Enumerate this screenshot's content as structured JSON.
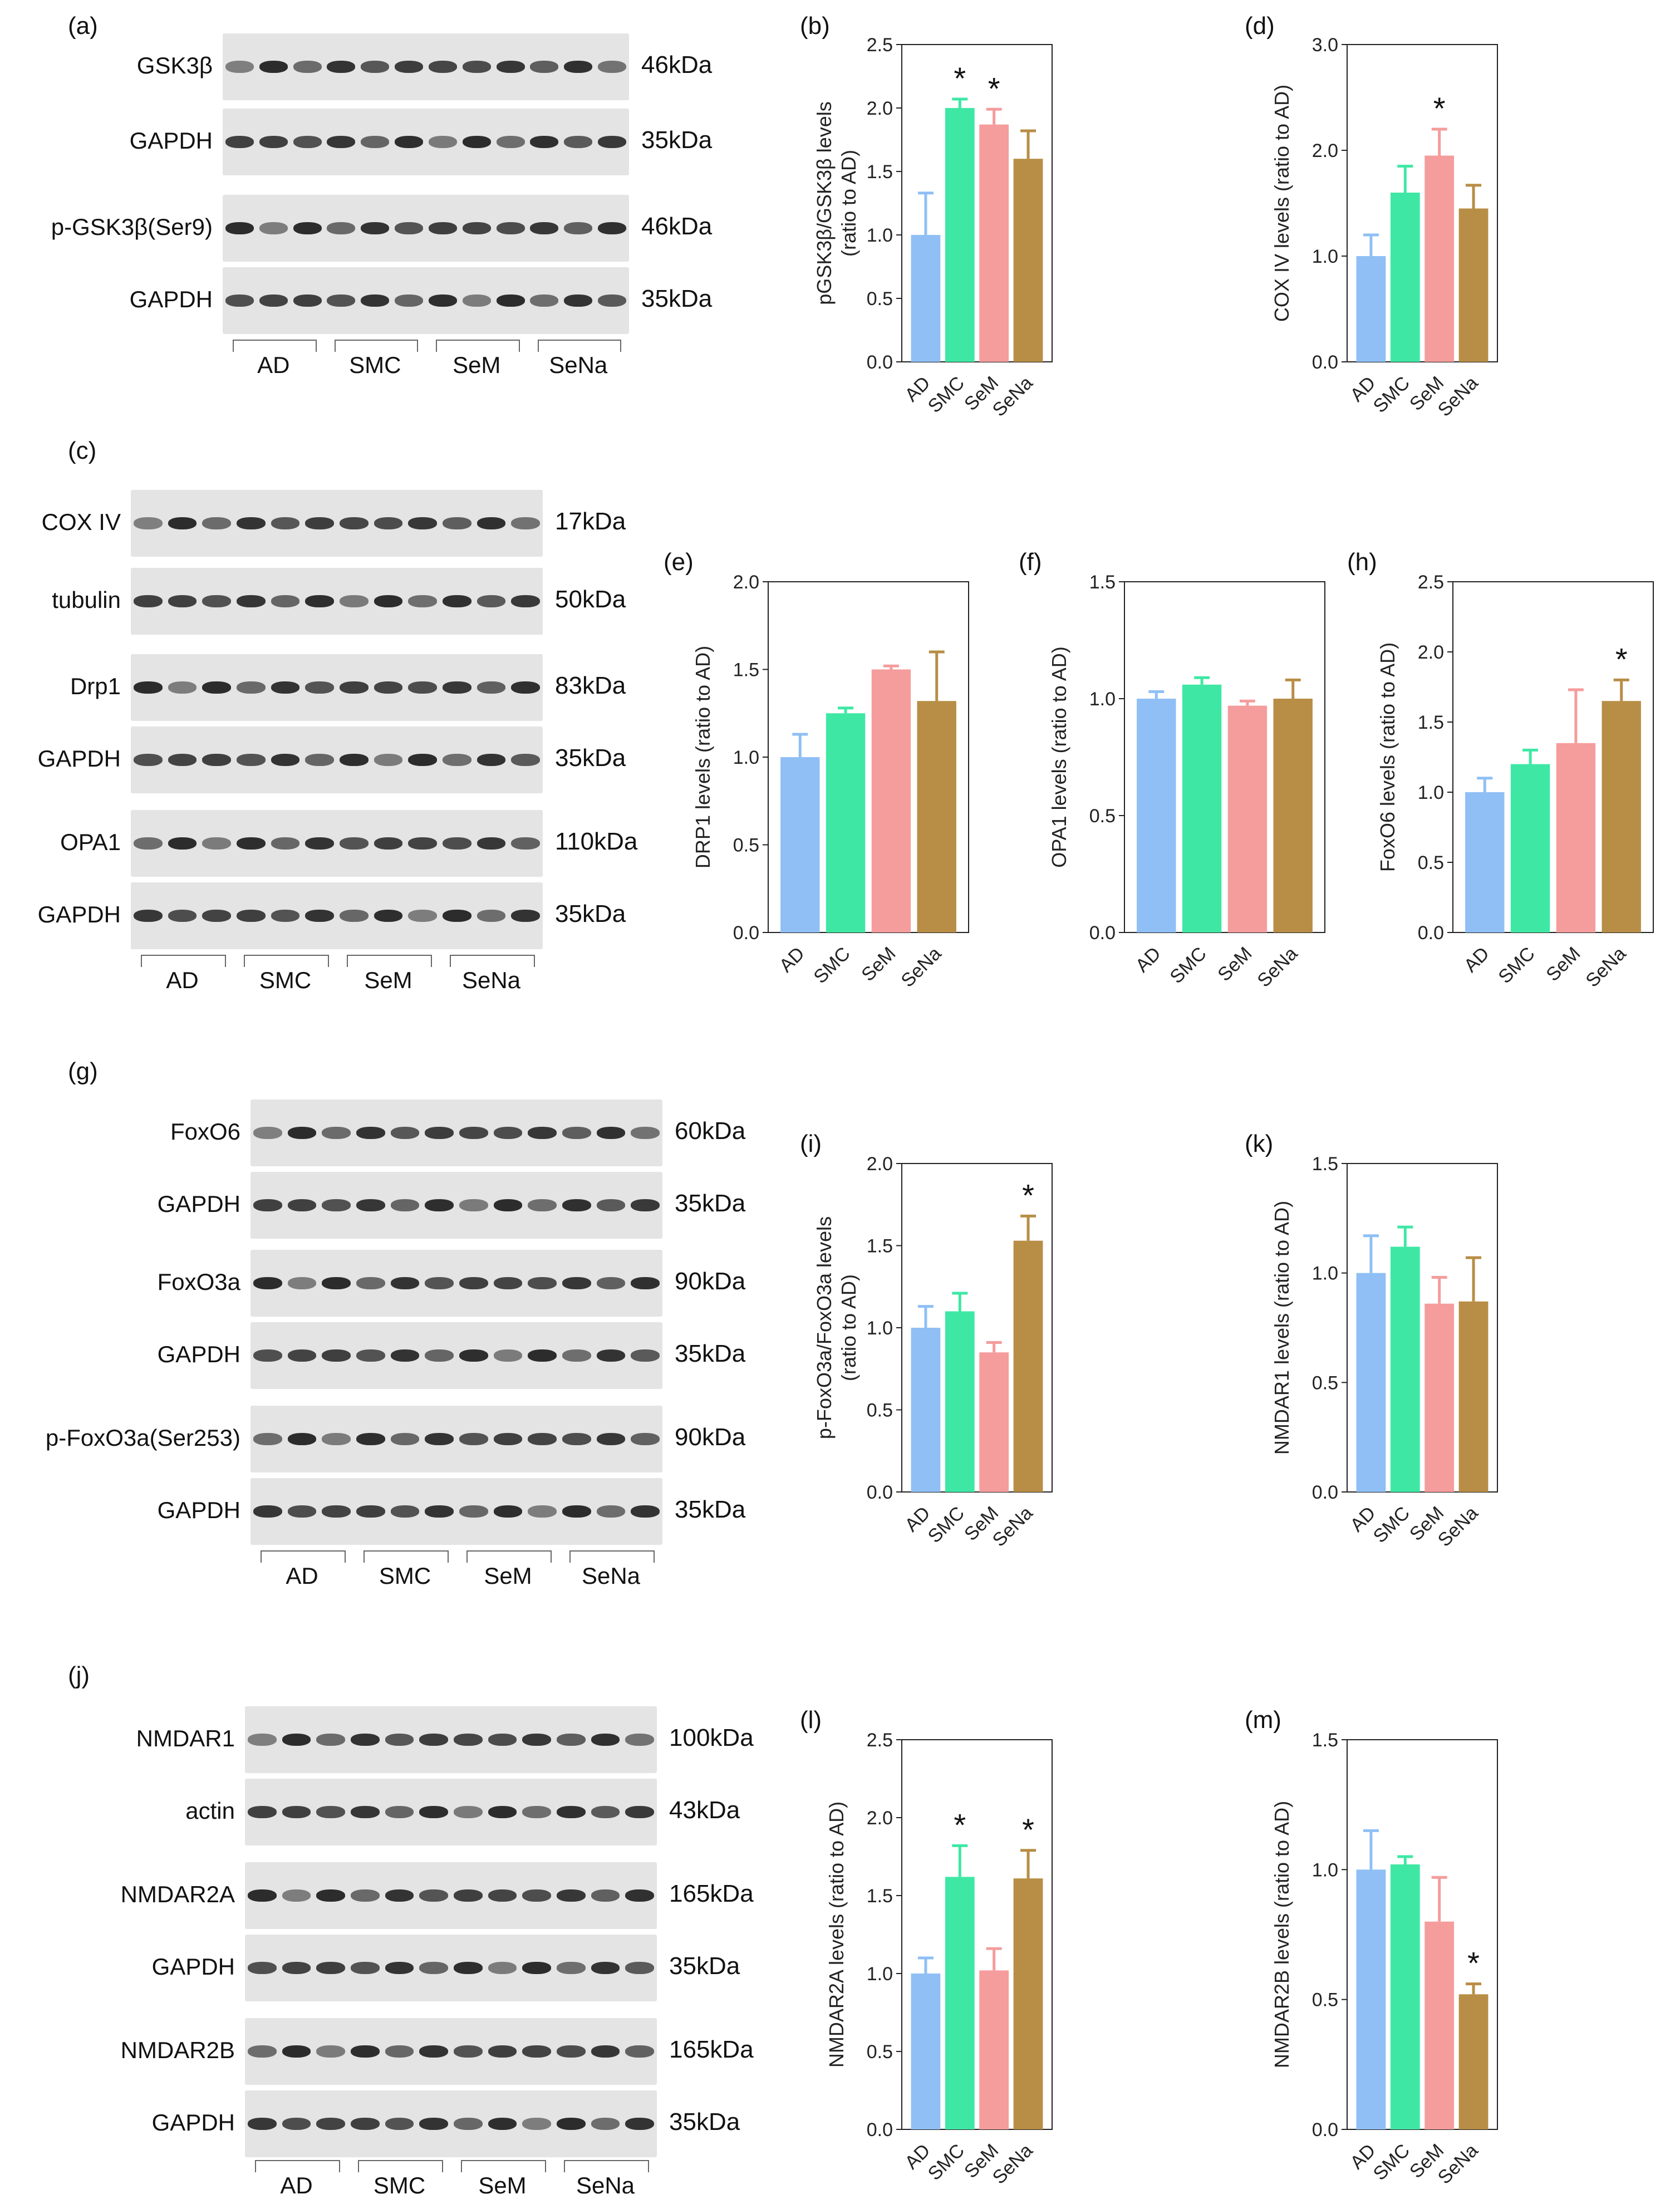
{
  "panels": {
    "a": "(a)",
    "b": "(b)",
    "c": "(c)",
    "d": "(d)",
    "e": "(e)",
    "f": "(f)",
    "g": "(g)",
    "h": "(h)",
    "i": "(i)",
    "j": "(j)",
    "k": "(k)",
    "l": "(l)",
    "m": "(m)"
  },
  "groups": [
    "AD",
    "SMC",
    "SeM",
    "SeNa"
  ],
  "colors": {
    "AD": "#8fbff5",
    "SMC": "#3ee8a4",
    "SeM": "#f59c9c",
    "SeNa": "#b88d45"
  },
  "blots": {
    "a": [
      {
        "name": "GSK3β",
        "kda": "46kDa"
      },
      {
        "name": "GAPDH",
        "kda": "35kDa"
      },
      {
        "name": "p-GSK3β(Ser9)",
        "kda": "46kDa"
      },
      {
        "name": "GAPDH",
        "kda": "35kDa"
      }
    ],
    "c": [
      {
        "name": "COX IV",
        "kda": "17kDa"
      },
      {
        "name": "tubulin",
        "kda": "50kDa"
      },
      {
        "name": "Drp1",
        "kda": "83kDa"
      },
      {
        "name": "GAPDH",
        "kda": "35kDa"
      },
      {
        "name": "OPA1",
        "kda": "110kDa"
      },
      {
        "name": "GAPDH",
        "kda": "35kDa"
      }
    ],
    "g": [
      {
        "name": "FoxO6",
        "kda": "60kDa"
      },
      {
        "name": "GAPDH",
        "kda": "35kDa"
      },
      {
        "name": "FoxO3a",
        "kda": "90kDa"
      },
      {
        "name": "GAPDH",
        "kda": "35kDa"
      },
      {
        "name": "p-FoxO3a(Ser253)",
        "kda": "90kDa"
      },
      {
        "name": "GAPDH",
        "kda": "35kDa"
      }
    ],
    "j": [
      {
        "name": "NMDAR1",
        "kda": "100kDa"
      },
      {
        "name": "actin",
        "kda": "43kDa"
      },
      {
        "name": "NMDAR2A",
        "kda": "165kDa"
      },
      {
        "name": "GAPDH",
        "kda": "35kDa"
      },
      {
        "name": "NMDAR2B",
        "kda": "165kDa"
      },
      {
        "name": "GAPDH",
        "kda": "35kDa"
      }
    ]
  },
  "chart_data": [
    {
      "id": "b",
      "type": "bar",
      "categories": [
        "AD",
        "SMC",
        "SeM",
        "SeNa"
      ],
      "values": [
        1.0,
        2.0,
        1.87,
        1.6
      ],
      "errors": [
        0.33,
        0.07,
        0.12,
        0.22
      ],
      "significant": [
        false,
        true,
        true,
        false
      ],
      "sig_marker": "*",
      "ylabel": "pGSK3β/GSK3β levels",
      "ylabel2": "(ratio to AD)",
      "ylim": [
        0,
        2.5
      ],
      "yticks": [
        "0.0",
        "0.5",
        "1.0",
        "1.5",
        "2.0",
        "2.5"
      ]
    },
    {
      "id": "d",
      "type": "bar",
      "categories": [
        "AD",
        "SMC",
        "SeM",
        "SeNa"
      ],
      "values": [
        1.0,
        1.6,
        1.95,
        1.45
      ],
      "errors": [
        0.2,
        0.25,
        0.25,
        0.22
      ],
      "significant": [
        false,
        false,
        true,
        false
      ],
      "sig_marker": "*",
      "ylabel": "COX IV levels (ratio to AD)",
      "ylabel2": "",
      "ylim": [
        0,
        3.0
      ],
      "yticks": [
        "0.0",
        "1.0",
        "2.0",
        "3.0"
      ]
    },
    {
      "id": "e",
      "type": "bar",
      "categories": [
        "AD",
        "SMC",
        "SeM",
        "SeNa"
      ],
      "values": [
        1.0,
        1.25,
        1.5,
        1.32
      ],
      "errors": [
        0.13,
        0.03,
        0.02,
        0.28
      ],
      "significant": [
        false,
        false,
        false,
        false
      ],
      "sig_marker": "*",
      "ylabel": "DRP1 levels (ratio to AD)",
      "ylabel2": "",
      "ylim": [
        0,
        2.0
      ],
      "yticks": [
        "0.0",
        "0.5",
        "1.0",
        "1.5",
        "2.0"
      ]
    },
    {
      "id": "f",
      "type": "bar",
      "categories": [
        "AD",
        "SMC",
        "SeM",
        "SeNa"
      ],
      "values": [
        1.0,
        1.06,
        0.97,
        1.0
      ],
      "errors": [
        0.03,
        0.03,
        0.02,
        0.08
      ],
      "significant": [
        false,
        false,
        false,
        false
      ],
      "sig_marker": "*",
      "ylabel": "OPA1 levels (ratio to AD)",
      "ylabel2": "",
      "ylim": [
        0,
        1.5
      ],
      "yticks": [
        "0.0",
        "0.5",
        "1.0",
        "1.5"
      ]
    },
    {
      "id": "h",
      "type": "bar",
      "categories": [
        "AD",
        "SMC",
        "SeM",
        "SeNa"
      ],
      "values": [
        1.0,
        1.2,
        1.35,
        1.65
      ],
      "errors": [
        0.1,
        0.1,
        0.38,
        0.15
      ],
      "significant": [
        false,
        false,
        false,
        true
      ],
      "sig_marker": "*",
      "ylabel": "FoxO6 levels (ratio to AD)",
      "ylabel2": "",
      "ylim": [
        0,
        2.5
      ],
      "yticks": [
        "0.0",
        "0.5",
        "1.0",
        "1.5",
        "2.0",
        "2.5"
      ]
    },
    {
      "id": "i",
      "type": "bar",
      "categories": [
        "AD",
        "SMC",
        "SeM",
        "SeNa"
      ],
      "values": [
        1.0,
        1.1,
        0.85,
        1.53
      ],
      "errors": [
        0.13,
        0.11,
        0.06,
        0.15
      ],
      "significant": [
        false,
        false,
        false,
        true
      ],
      "sig_marker": "*",
      "ylabel": "p-FoxO3a/FoxO3a levels",
      "ylabel2": "(ratio to AD)",
      "ylim": [
        0,
        2.0
      ],
      "yticks": [
        "0.0",
        "0.5",
        "1.0",
        "1.5",
        "2.0"
      ]
    },
    {
      "id": "k",
      "type": "bar",
      "categories": [
        "AD",
        "SMC",
        "SeM",
        "SeNa"
      ],
      "values": [
        1.0,
        1.12,
        0.86,
        0.87
      ],
      "errors": [
        0.17,
        0.09,
        0.12,
        0.2
      ],
      "significant": [
        false,
        false,
        false,
        false
      ],
      "sig_marker": "*",
      "ylabel": "NMDAR1 levels (ratio to AD)",
      "ylabel2": "",
      "ylim": [
        0,
        1.5
      ],
      "yticks": [
        "0.0",
        "0.5",
        "1.0",
        "1.5"
      ]
    },
    {
      "id": "l",
      "type": "bar",
      "categories": [
        "AD",
        "SMC",
        "SeM",
        "SeNa"
      ],
      "values": [
        1.0,
        1.62,
        1.02,
        1.61
      ],
      "errors": [
        0.1,
        0.2,
        0.14,
        0.18
      ],
      "significant": [
        false,
        true,
        false,
        true
      ],
      "sig_marker": "*",
      "ylabel": "NMDAR2A levels (ratio to AD)",
      "ylabel2": "",
      "ylim": [
        0,
        2.5
      ],
      "yticks": [
        "0.0",
        "0.5",
        "1.0",
        "1.5",
        "2.0",
        "2.5"
      ]
    },
    {
      "id": "m",
      "type": "bar",
      "categories": [
        "AD",
        "SMC",
        "SeM",
        "SeNa"
      ],
      "values": [
        1.0,
        1.02,
        0.8,
        0.52
      ],
      "errors": [
        0.15,
        0.03,
        0.17,
        0.04
      ],
      "significant": [
        false,
        false,
        false,
        true
      ],
      "sig_marker": "*",
      "ylabel": "NMDAR2B levels (ratio to AD)",
      "ylabel2": "",
      "ylim": [
        0,
        1.5
      ],
      "yticks": [
        "0.0",
        "0.5",
        "1.0",
        "1.5"
      ]
    }
  ]
}
